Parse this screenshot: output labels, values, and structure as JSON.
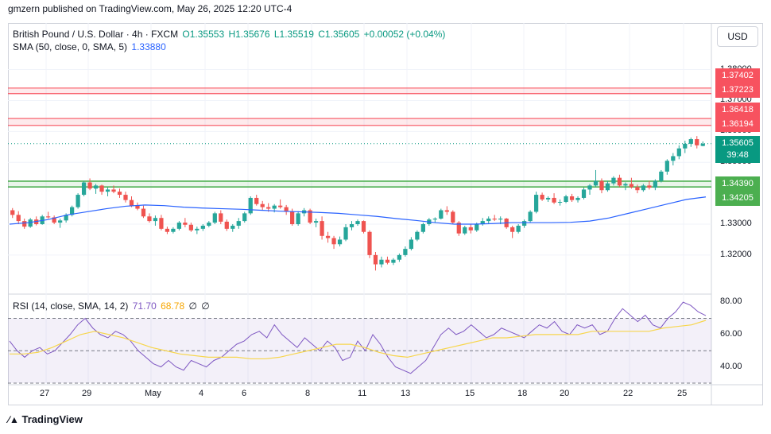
{
  "header": {
    "publisher": "gmzern published on TradingView.com, May 26, 2025 12:20 UTC-4"
  },
  "legend": {
    "symbol": "British Pound / U.S. Dollar · 4h · FXCM",
    "open": "O1.35553",
    "high": "H1.35676",
    "low": "L1.35519",
    "close": "C1.35605",
    "change": "+0.00052 (+0.04%)",
    "sma_label": "SMA (50, close, 0, SMA, 5)",
    "sma_value": "1.33880",
    "rsi_label": "RSI (14, close, SMA, 14, 2)",
    "rsi_value": "71.70",
    "rsi_sma": "68.78",
    "rsi_extra1": "∅",
    "rsi_extra2": "∅"
  },
  "currency_button": "USD",
  "price_axis": [
    "1.38000",
    "1.37000",
    "1.36000",
    "1.35000",
    "1.33000",
    "1.32000"
  ],
  "rsi_axis": [
    "80.00",
    "60.00",
    "40.00"
  ],
  "time_axis": [
    "27",
    "29",
    "May",
    "4",
    "6",
    "8",
    "11",
    "13",
    "15",
    "18",
    "20",
    "22",
    "25"
  ],
  "price_tags": {
    "r1": "1.37402",
    "r2": "1.37223",
    "r3": "1.36418",
    "r4": "1.36194",
    "current": "1.35605",
    "countdown": "39:48",
    "s1": "1.34390",
    "s2": "1.34205"
  },
  "colors": {
    "up": "#26a69a",
    "down": "#ef5350",
    "resistance": "#f7525f",
    "support": "#4caf50",
    "sma": "#2962ff",
    "rsi": "#7e57c2",
    "rsi_sma": "#f7d64d",
    "current": "#089981"
  },
  "footer": {
    "brand": "TradingView"
  },
  "chart_data": {
    "type": "candlestick",
    "price_range": [
      1.312,
      1.384
    ],
    "candles": [
      [
        1.3345,
        1.3352,
        1.332,
        1.333
      ],
      [
        1.333,
        1.3342,
        1.33,
        1.331
      ],
      [
        1.331,
        1.3318,
        1.3285,
        1.3292
      ],
      [
        1.3292,
        1.332,
        1.3288,
        1.3315
      ],
      [
        1.3315,
        1.3325,
        1.3296,
        1.33
      ],
      [
        1.33,
        1.333,
        1.3298,
        1.3325
      ],
      [
        1.3325,
        1.334,
        1.3318,
        1.3322
      ],
      [
        1.3322,
        1.3328,
        1.33,
        1.3305
      ],
      [
        1.3305,
        1.3318,
        1.3288,
        1.3312
      ],
      [
        1.3312,
        1.3335,
        1.3305,
        1.333
      ],
      [
        1.333,
        1.336,
        1.3325,
        1.3355
      ],
      [
        1.3355,
        1.34,
        1.335,
        1.3395
      ],
      [
        1.3395,
        1.344,
        1.339,
        1.3435
      ],
      [
        1.3435,
        1.3448,
        1.341,
        1.3415
      ],
      [
        1.3415,
        1.343,
        1.3398,
        1.3425
      ],
      [
        1.3425,
        1.3428,
        1.3395,
        1.3405
      ],
      [
        1.3405,
        1.342,
        1.339,
        1.3412
      ],
      [
        1.3412,
        1.3425,
        1.34,
        1.3405
      ],
      [
        1.3405,
        1.3415,
        1.3385,
        1.3395
      ],
      [
        1.3395,
        1.3405,
        1.337,
        1.3378
      ],
      [
        1.3378,
        1.339,
        1.3355,
        1.336
      ],
      [
        1.336,
        1.337,
        1.3345,
        1.335
      ],
      [
        1.335,
        1.336,
        1.332,
        1.3325
      ],
      [
        1.3325,
        1.3335,
        1.3305,
        1.331
      ],
      [
        1.331,
        1.3328,
        1.3295,
        1.332
      ],
      [
        1.332,
        1.333,
        1.328,
        1.3285
      ],
      [
        1.3285,
        1.3292,
        1.3268,
        1.3275
      ],
      [
        1.3275,
        1.329,
        1.327,
        1.3285
      ],
      [
        1.3285,
        1.331,
        1.328,
        1.3305
      ],
      [
        1.3305,
        1.332,
        1.329,
        1.3298
      ],
      [
        1.3298,
        1.3305,
        1.3275,
        1.328
      ],
      [
        1.328,
        1.3292,
        1.3268,
        1.3285
      ],
      [
        1.3285,
        1.33,
        1.3278,
        1.3295
      ],
      [
        1.3295,
        1.331,
        1.329,
        1.3305
      ],
      [
        1.3305,
        1.334,
        1.33,
        1.3335
      ],
      [
        1.3335,
        1.3345,
        1.33,
        1.3308
      ],
      [
        1.3308,
        1.3315,
        1.3278,
        1.3285
      ],
      [
        1.3285,
        1.33,
        1.3275,
        1.3295
      ],
      [
        1.3295,
        1.332,
        1.3285,
        1.331
      ],
      [
        1.331,
        1.334,
        1.3305,
        1.3335
      ],
      [
        1.3335,
        1.339,
        1.333,
        1.3385
      ],
      [
        1.3385,
        1.3395,
        1.336,
        1.3365
      ],
      [
        1.3365,
        1.3375,
        1.3345,
        1.3355
      ],
      [
        1.3355,
        1.3368,
        1.334,
        1.335
      ],
      [
        1.335,
        1.3365,
        1.3338,
        1.336
      ],
      [
        1.336,
        1.338,
        1.335,
        1.3355
      ],
      [
        1.3355,
        1.3362,
        1.333,
        1.334
      ],
      [
        1.334,
        1.335,
        1.3295,
        1.33
      ],
      [
        1.33,
        1.3342,
        1.3295,
        1.3335
      ],
      [
        1.3335,
        1.3352,
        1.3325,
        1.3345
      ],
      [
        1.3345,
        1.335,
        1.33,
        1.3305
      ],
      [
        1.3305,
        1.3318,
        1.329,
        1.331
      ],
      [
        1.331,
        1.3325,
        1.325,
        1.3262
      ],
      [
        1.3262,
        1.3275,
        1.324,
        1.3255
      ],
      [
        1.3255,
        1.3262,
        1.322,
        1.3235
      ],
      [
        1.3235,
        1.326,
        1.3228,
        1.325
      ],
      [
        1.325,
        1.33,
        1.3245,
        1.329
      ],
      [
        1.329,
        1.331,
        1.328,
        1.33
      ],
      [
        1.33,
        1.3315,
        1.3295,
        1.331
      ],
      [
        1.331,
        1.3312,
        1.327,
        1.3275
      ],
      [
        1.3275,
        1.328,
        1.319,
        1.32
      ],
      [
        1.32,
        1.321,
        1.315,
        1.317
      ],
      [
        1.317,
        1.3195,
        1.316,
        1.3185
      ],
      [
        1.3185,
        1.3195,
        1.317,
        1.3175
      ],
      [
        1.3175,
        1.319,
        1.3168,
        1.3185
      ],
      [
        1.3185,
        1.3205,
        1.3178,
        1.32
      ],
      [
        1.32,
        1.3228,
        1.3195,
        1.322
      ],
      [
        1.322,
        1.3258,
        1.3215,
        1.325
      ],
      [
        1.325,
        1.328,
        1.3245,
        1.3275
      ],
      [
        1.3275,
        1.3305,
        1.327,
        1.33
      ],
      [
        1.33,
        1.332,
        1.3295,
        1.3315
      ],
      [
        1.3315,
        1.3322,
        1.3305,
        1.3318
      ],
      [
        1.3318,
        1.335,
        1.3315,
        1.3345
      ],
      [
        1.3345,
        1.3358,
        1.333,
        1.334
      ],
      [
        1.334,
        1.3345,
        1.33,
        1.3305
      ],
      [
        1.3305,
        1.331,
        1.3262,
        1.327
      ],
      [
        1.327,
        1.3295,
        1.3265,
        1.329
      ],
      [
        1.329,
        1.33,
        1.327,
        1.328
      ],
      [
        1.328,
        1.3305,
        1.3275,
        1.33
      ],
      [
        1.33,
        1.332,
        1.3295,
        1.331
      ],
      [
        1.331,
        1.3325,
        1.33,
        1.3318
      ],
      [
        1.3318,
        1.333,
        1.331,
        1.3315
      ],
      [
        1.3315,
        1.3325,
        1.33,
        1.3318
      ],
      [
        1.3318,
        1.332,
        1.3285,
        1.329
      ],
      [
        1.329,
        1.3295,
        1.3255,
        1.3275
      ],
      [
        1.3275,
        1.33,
        1.327,
        1.3295
      ],
      [
        1.3295,
        1.3315,
        1.3288,
        1.331
      ],
      [
        1.331,
        1.3345,
        1.3305,
        1.334
      ],
      [
        1.334,
        1.3405,
        1.3335,
        1.3395
      ],
      [
        1.3395,
        1.3402,
        1.3375,
        1.338
      ],
      [
        1.338,
        1.339,
        1.3372,
        1.3385
      ],
      [
        1.3385,
        1.34,
        1.3365,
        1.337
      ],
      [
        1.337,
        1.338,
        1.336,
        1.3372
      ],
      [
        1.3372,
        1.3395,
        1.3368,
        1.339
      ],
      [
        1.339,
        1.3398,
        1.3372,
        1.3378
      ],
      [
        1.3378,
        1.339,
        1.337,
        1.3385
      ],
      [
        1.3385,
        1.3418,
        1.338,
        1.3412
      ],
      [
        1.3412,
        1.343,
        1.3395,
        1.3425
      ],
      [
        1.3425,
        1.3475,
        1.342,
        1.344
      ],
      [
        1.344,
        1.3448,
        1.34,
        1.341
      ],
      [
        1.341,
        1.344,
        1.3405,
        1.3432
      ],
      [
        1.3432,
        1.3455,
        1.3425,
        1.345
      ],
      [
        1.345,
        1.346,
        1.342,
        1.3425
      ],
      [
        1.3425,
        1.3435,
        1.341,
        1.343
      ],
      [
        1.343,
        1.345,
        1.3415,
        1.342
      ],
      [
        1.342,
        1.3428,
        1.34,
        1.341
      ],
      [
        1.341,
        1.343,
        1.3405,
        1.3425
      ],
      [
        1.3425,
        1.344,
        1.3412,
        1.3418
      ],
      [
        1.3418,
        1.3445,
        1.341,
        1.344
      ],
      [
        1.344,
        1.3475,
        1.3435,
        1.347
      ],
      [
        1.347,
        1.351,
        1.346,
        1.3505
      ],
      [
        1.3505,
        1.353,
        1.349,
        1.352
      ],
      [
        1.352,
        1.3555,
        1.351,
        1.3545
      ],
      [
        1.3545,
        1.357,
        1.353,
        1.356
      ],
      [
        1.356,
        1.358,
        1.355,
        1.3575
      ],
      [
        1.3575,
        1.3585,
        1.3545,
        1.3555
      ],
      [
        1.3553,
        1.35676,
        1.35519,
        1.35605
      ]
    ],
    "sma_points": [
      1.33,
      1.3305,
      1.3315,
      1.333,
      1.334,
      1.335,
      1.3358,
      1.3362,
      1.336,
      1.3355,
      1.3352,
      1.335,
      1.3348,
      1.3345,
      1.3342,
      1.334,
      1.3338,
      1.3335,
      1.333,
      1.3325,
      1.3318,
      1.3312,
      1.3305,
      1.33,
      1.33,
      1.3302,
      1.3305,
      1.3305,
      1.3305,
      1.3306,
      1.331,
      1.332,
      1.3335,
      1.335,
      1.3365,
      1.338,
      1.3388
    ],
    "support_levels": [
      1.3439,
      1.34205
    ],
    "resistance_levels": [
      1.37402,
      1.37223,
      1.36418,
      1.36194
    ],
    "rsi_range": [
      30,
      84
    ],
    "rsi_values": [
      56,
      50,
      46,
      50,
      52,
      48,
      50,
      55,
      60,
      66,
      70,
      64,
      60,
      58,
      62,
      60,
      56,
      50,
      46,
      42,
      40,
      44,
      40,
      38,
      44,
      42,
      40,
      44,
      46,
      50,
      54,
      56,
      60,
      62,
      58,
      66,
      60,
      56,
      52,
      58,
      54,
      50,
      56,
      52,
      44,
      46,
      56,
      50,
      60,
      54,
      46,
      40,
      38,
      36,
      40,
      44,
      52,
      60,
      64,
      60,
      62,
      66,
      62,
      58,
      60,
      64,
      62,
      60,
      58,
      62,
      66,
      64,
      68,
      62,
      60,
      66,
      64,
      66,
      60,
      62,
      70,
      76,
      72,
      68,
      72,
      66,
      64,
      70,
      74,
      80,
      78,
      74,
      71.7
    ],
    "rsi_sma_values": [
      48,
      48,
      49,
      52,
      56,
      60,
      62,
      60,
      58,
      55,
      52,
      50,
      48,
      47,
      46,
      46,
      46,
      45,
      45,
      46,
      48,
      50,
      52,
      54,
      54,
      52,
      49,
      47,
      46,
      48,
      50,
      52,
      54,
      56,
      58,
      58,
      59,
      60,
      60,
      60,
      60,
      62,
      62,
      62,
      62,
      62,
      64,
      65,
      66,
      68.78
    ],
    "rsi_levels": [
      70,
      50,
      30
    ]
  }
}
